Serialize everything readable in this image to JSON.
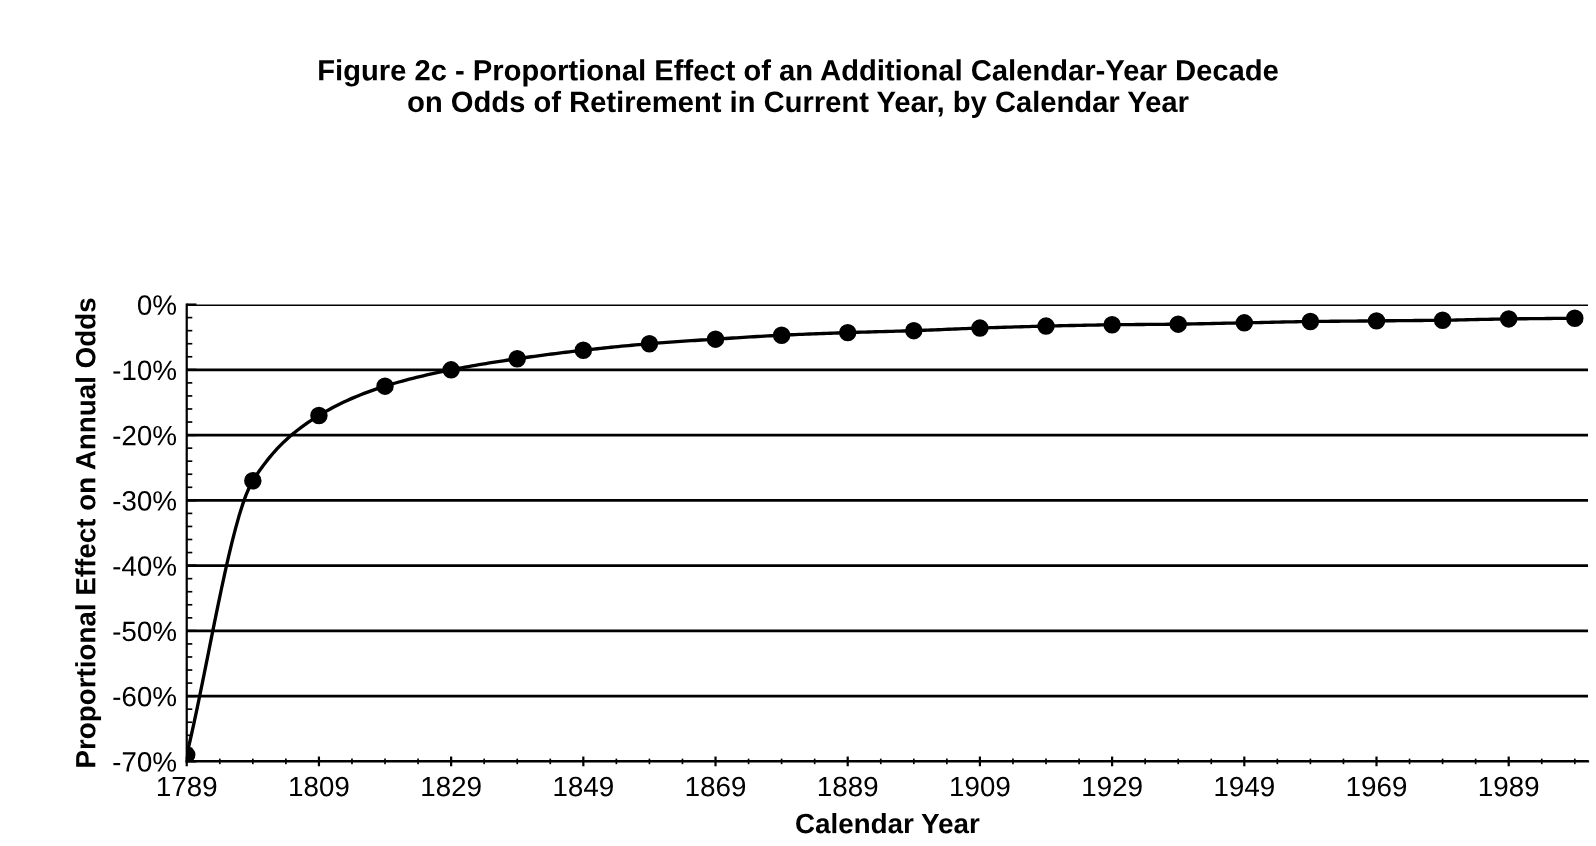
{
  "chart_data": {
    "type": "line",
    "title": "Figure 2c - Proportional Effect of an Additional Calendar-Year Decade\non Odds of Retirement in Current Year, by Calendar Year",
    "xlabel": "Calendar Year",
    "ylabel": "Proportional Effect on Annual Odds",
    "x": [
      1789,
      1799,
      1809,
      1819,
      1829,
      1839,
      1849,
      1859,
      1869,
      1879,
      1889,
      1899,
      1909,
      1919,
      1929,
      1939,
      1949,
      1959,
      1969,
      1979,
      1989,
      1999
    ],
    "series": [
      {
        "color": "#000000",
        "values": [
          -69,
          -27,
          -17,
          -12.5,
          -10,
          -8.3,
          -7,
          -6,
          -5.3,
          -4.7,
          -4.3,
          -4,
          -3.6,
          -3.3,
          -3.1,
          -3,
          -2.8,
          -2.6,
          -2.5,
          -2.4,
          -2.2,
          -2.1
        ]
      }
    ],
    "xlim": [
      1789,
      2001
    ],
    "xticks": [
      1789,
      1809,
      1829,
      1849,
      1869,
      1889,
      1909,
      1929,
      1949,
      1969,
      1989
    ],
    "ylim": [
      -70,
      0
    ],
    "yticks": [
      {
        "value": -70,
        "label": "-70%"
      },
      {
        "value": -60,
        "label": "-60%"
      },
      {
        "value": -50,
        "label": "-50%"
      },
      {
        "value": -40,
        "label": "-40%"
      },
      {
        "value": -30,
        "label": "-30%"
      },
      {
        "value": -20,
        "label": "-20%"
      },
      {
        "value": -10,
        "label": "-10%"
      },
      {
        "value": 0,
        "label": "0%"
      }
    ],
    "grid": "y",
    "marker": "circle",
    "line_style": "solid"
  }
}
